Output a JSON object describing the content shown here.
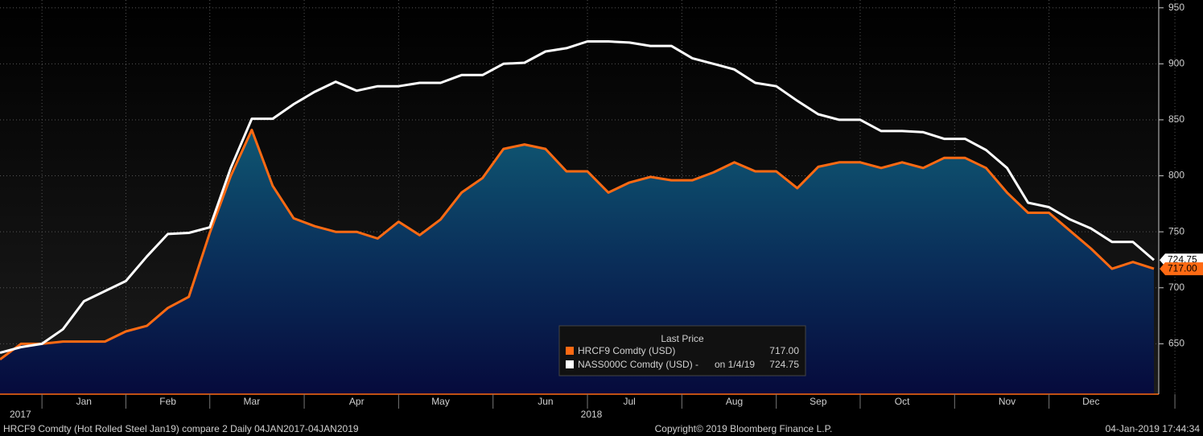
{
  "chart_data": {
    "type": "line",
    "categories": [
      null,
      null,
      null,
      null,
      "Jan",
      null,
      null,
      null,
      "Feb",
      null,
      null,
      null,
      "Mar",
      null,
      null,
      null,
      null,
      "Apr",
      null,
      null,
      null,
      "May",
      null,
      null,
      null,
      null,
      "Jun",
      null,
      null,
      null,
      "Jul",
      null,
      null,
      null,
      null,
      "Aug",
      null,
      null,
      null,
      "Sep",
      null,
      null,
      null,
      "Oct",
      null,
      null,
      null,
      null,
      "Nov",
      null,
      null,
      null,
      "Dec",
      null,
      null,
      null
    ],
    "years": [
      "2017",
      "2018"
    ],
    "series": [
      {
        "name": "HRCF9 Comdty (USD)",
        "color": "#ff6a13",
        "area": true,
        "values": [
          636,
          650,
          650,
          652,
          652,
          652,
          661,
          666,
          682,
          692,
          749,
          800,
          841,
          791,
          762,
          755,
          750,
          750,
          744,
          759,
          747,
          761,
          785,
          798,
          824,
          828,
          824,
          804,
          804,
          785,
          794,
          799,
          796,
          796,
          803,
          812,
          804,
          804,
          789,
          808,
          812,
          812,
          807,
          812,
          807,
          816,
          816,
          807,
          785,
          767,
          767,
          751,
          735,
          717,
          723,
          717
        ],
        "value_labels": [
          null,
          null,
          null,
          null,
          null,
          null,
          null,
          null,
          null,
          null,
          null,
          null,
          null,
          null,
          null,
          null,
          null,
          null,
          null,
          null,
          null,
          null,
          null,
          null,
          null,
          null,
          null,
          null,
          null,
          null,
          null,
          null,
          null,
          null,
          null,
          null,
          null,
          null,
          null,
          null,
          null,
          null,
          null,
          null,
          null,
          null,
          null,
          null,
          null,
          null,
          null,
          null,
          null,
          null,
          null,
          "717.00"
        ]
      },
      {
        "name": "NASS000C Comdty (USD) -",
        "color": "#ffffff",
        "area": false,
        "values": [
          642,
          647,
          650,
          663,
          688,
          697,
          706,
          728,
          748,
          749,
          754,
          807,
          851,
          851,
          864,
          875,
          884,
          876,
          880,
          880,
          883,
          883,
          890,
          890,
          900,
          901,
          911,
          914,
          920,
          920,
          919,
          916,
          916,
          905,
          900,
          895,
          883,
          880,
          867,
          855,
          850,
          850,
          840,
          840,
          839,
          833,
          833,
          823,
          807,
          776,
          772,
          761,
          753,
          741,
          741,
          724.75
        ]
      }
    ],
    "legend_title": "Last Price",
    "legend_date": "on 1/4/19",
    "ylim": [
      605,
      957
    ],
    "yticks": [
      650,
      700,
      750,
      800,
      850,
      900,
      950
    ],
    "grid": true,
    "footer_left": "HRCF9 Comdty (Hot Rolled Steel  Jan19) compare 2  Daily 04JAN2017-04JAN2019",
    "footer_center": "Copyright© 2019 Bloomberg Finance L.P.",
    "footer_right": "04-Jan-2019 17:44:34"
  }
}
